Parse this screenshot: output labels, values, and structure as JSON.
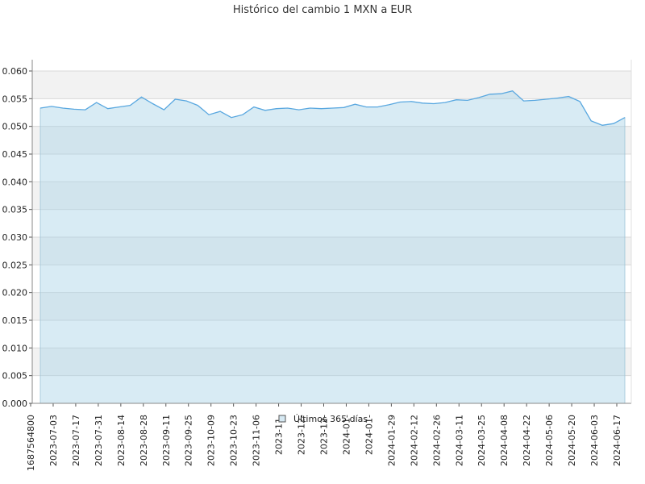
{
  "chart_data": {
    "type": "area",
    "title": "Histórico del cambio 1 MXN a EUR",
    "xlabel": "",
    "ylabel": "",
    "ylim": [
      0,
      0.06
    ],
    "y_ticks": [
      "0.000",
      "0.005",
      "0.010",
      "0.015",
      "0.020",
      "0.025",
      "0.030",
      "0.035",
      "0.040",
      "0.045",
      "0.050",
      "0.055",
      "0.060"
    ],
    "x_ticks": [
      "1687564800",
      "2023-07-03",
      "2023-07-17",
      "2023-07-31",
      "2023-08-14",
      "2023-08-28",
      "2023-09-11",
      "2023-09-25",
      "2023-10-09",
      "2023-10-23",
      "2023-11-06",
      "2023-11-",
      "2023-12-",
      "2023-12-",
      "2024-01-",
      "2024-01-",
      "2024-01-29",
      "2024-02-12",
      "2024-02-26",
      "2024-03-11",
      "2024-03-25",
      "2024-04-08",
      "2024-04-22",
      "2024-05-06",
      "2024-05-20",
      "2024-06-03",
      "2024-06-17"
    ],
    "grid": true,
    "legend_position": "bottom-center",
    "colors": {
      "line": "#5aa8e0",
      "fill": "#a9d2e6",
      "band": "#f2f2f2",
      "grid": "#d8d8d8"
    },
    "series": [
      {
        "name": "Últimos 365 días",
        "x": [
          "2023-06-24",
          "2023-07-01",
          "2023-07-08",
          "2023-07-15",
          "2023-07-22",
          "2023-07-29",
          "2023-08-05",
          "2023-08-12",
          "2023-08-19",
          "2023-08-26",
          "2023-09-02",
          "2023-09-09",
          "2023-09-16",
          "2023-09-23",
          "2023-09-30",
          "2023-10-07",
          "2023-10-14",
          "2023-10-21",
          "2023-10-28",
          "2023-11-04",
          "2023-11-11",
          "2023-11-18",
          "2023-11-25",
          "2023-12-02",
          "2023-12-09",
          "2023-12-16",
          "2023-12-23",
          "2023-12-30",
          "2024-01-06",
          "2024-01-13",
          "2024-01-20",
          "2024-01-27",
          "2024-02-03",
          "2024-02-10",
          "2024-02-17",
          "2024-02-24",
          "2024-03-02",
          "2024-03-09",
          "2024-03-16",
          "2024-03-23",
          "2024-03-30",
          "2024-04-06",
          "2024-04-13",
          "2024-04-20",
          "2024-04-27",
          "2024-05-04",
          "2024-05-11",
          "2024-05-18",
          "2024-05-25",
          "2024-06-01",
          "2024-06-08",
          "2024-06-15",
          "2024-06-22"
        ],
        "values": [
          0.0533,
          0.0536,
          0.0533,
          0.0531,
          0.053,
          0.0543,
          0.0532,
          0.0535,
          0.0538,
          0.0553,
          0.0541,
          0.053,
          0.0549,
          0.0546,
          0.0538,
          0.0521,
          0.0527,
          0.0516,
          0.0521,
          0.0535,
          0.0529,
          0.0532,
          0.0533,
          0.053,
          0.0533,
          0.0532,
          0.0533,
          0.0534,
          0.054,
          0.0535,
          0.0535,
          0.0539,
          0.0544,
          0.0545,
          0.0542,
          0.0541,
          0.0543,
          0.0548,
          0.0547,
          0.0552,
          0.0558,
          0.0559,
          0.0564,
          0.0546,
          0.0547,
          0.0549,
          0.0551,
          0.0554,
          0.0545,
          0.051,
          0.0502,
          0.0505,
          0.0516
        ]
      }
    ]
  }
}
